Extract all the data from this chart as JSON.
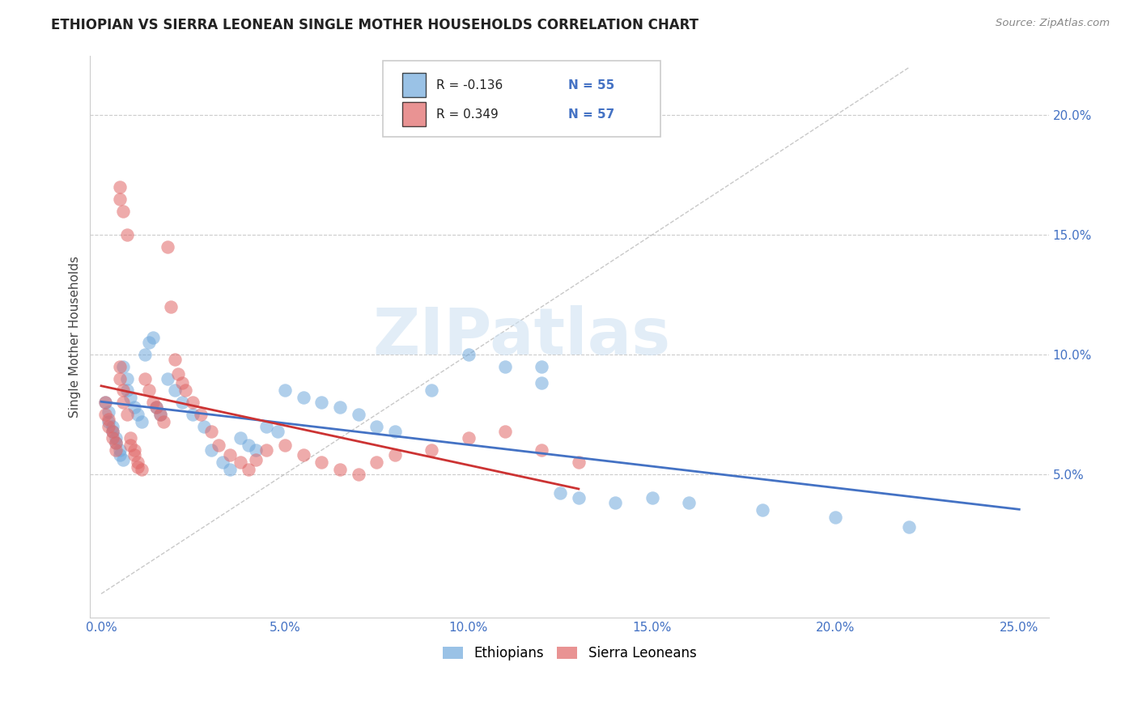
{
  "title": "ETHIOPIAN VS SIERRA LEONEAN SINGLE MOTHER HOUSEHOLDS CORRELATION CHART",
  "source": "Source: ZipAtlas.com",
  "ylabel": "Single Mother Households",
  "xlim_min": -0.003,
  "xlim_max": 0.258,
  "ylim_min": -0.01,
  "ylim_max": 0.225,
  "x_ticks": [
    0.0,
    0.05,
    0.1,
    0.15,
    0.2,
    0.25
  ],
  "x_tick_labels": [
    "0.0%",
    "5.0%",
    "10.0%",
    "15.0%",
    "20.0%",
    "25.0%"
  ],
  "y_ticks_right": [
    0.05,
    0.1,
    0.15,
    0.2
  ],
  "y_tick_labels_right": [
    "5.0%",
    "10.0%",
    "15.0%",
    "20.0%"
  ],
  "ethiopian_color": "#6fa8dc",
  "sierra_leonean_color": "#e06666",
  "ethiopian_line_color": "#4472c4",
  "sierra_leonean_line_color": "#cc3333",
  "diagonal_color": "#bbbbbb",
  "legend_R_ethiopian": "R = -0.136",
  "legend_N_ethiopian": "N = 55",
  "legend_R_sierra": "R = 0.349",
  "legend_N_sierra": "N = 57",
  "watermark_text": "ZIPatlas",
  "ethiopians_label": "Ethiopians",
  "sierra_leoneans_label": "Sierra Leoneans",
  "eth_x": [
    0.001,
    0.002,
    0.002,
    0.003,
    0.003,
    0.004,
    0.004,
    0.005,
    0.005,
    0.006,
    0.006,
    0.007,
    0.007,
    0.008,
    0.009,
    0.01,
    0.011,
    0.012,
    0.013,
    0.014,
    0.015,
    0.016,
    0.018,
    0.02,
    0.022,
    0.025,
    0.028,
    0.03,
    0.033,
    0.035,
    0.038,
    0.04,
    0.042,
    0.045,
    0.048,
    0.05,
    0.055,
    0.06,
    0.065,
    0.07,
    0.075,
    0.08,
    0.09,
    0.1,
    0.11,
    0.12,
    0.13,
    0.14,
    0.15,
    0.16,
    0.18,
    0.2,
    0.12,
    0.125,
    0.22
  ],
  "eth_y": [
    0.08,
    0.076,
    0.072,
    0.07,
    0.068,
    0.065,
    0.063,
    0.06,
    0.058,
    0.056,
    0.095,
    0.09,
    0.085,
    0.082,
    0.078,
    0.075,
    0.072,
    0.1,
    0.105,
    0.107,
    0.078,
    0.075,
    0.09,
    0.085,
    0.08,
    0.075,
    0.07,
    0.06,
    0.055,
    0.052,
    0.065,
    0.062,
    0.06,
    0.07,
    0.068,
    0.085,
    0.082,
    0.08,
    0.078,
    0.075,
    0.07,
    0.068,
    0.085,
    0.1,
    0.095,
    0.088,
    0.04,
    0.038,
    0.04,
    0.038,
    0.035,
    0.032,
    0.095,
    0.042,
    0.028
  ],
  "sl_x": [
    0.001,
    0.001,
    0.002,
    0.002,
    0.003,
    0.003,
    0.004,
    0.004,
    0.005,
    0.005,
    0.005,
    0.006,
    0.006,
    0.007,
    0.007,
    0.008,
    0.008,
    0.009,
    0.009,
    0.01,
    0.01,
    0.011,
    0.012,
    0.013,
    0.014,
    0.015,
    0.016,
    0.017,
    0.018,
    0.019,
    0.02,
    0.021,
    0.022,
    0.023,
    0.025,
    0.027,
    0.03,
    0.032,
    0.035,
    0.038,
    0.04,
    0.042,
    0.045,
    0.05,
    0.055,
    0.06,
    0.065,
    0.07,
    0.075,
    0.08,
    0.09,
    0.1,
    0.11,
    0.12,
    0.13,
    0.005,
    0.006
  ],
  "sl_y": [
    0.08,
    0.075,
    0.073,
    0.07,
    0.068,
    0.065,
    0.063,
    0.06,
    0.095,
    0.09,
    0.165,
    0.085,
    0.08,
    0.075,
    0.15,
    0.065,
    0.062,
    0.06,
    0.058,
    0.055,
    0.053,
    0.052,
    0.09,
    0.085,
    0.08,
    0.078,
    0.075,
    0.072,
    0.145,
    0.12,
    0.098,
    0.092,
    0.088,
    0.085,
    0.08,
    0.075,
    0.068,
    0.062,
    0.058,
    0.055,
    0.052,
    0.056,
    0.06,
    0.062,
    0.058,
    0.055,
    0.052,
    0.05,
    0.055,
    0.058,
    0.06,
    0.065,
    0.068,
    0.06,
    0.055,
    0.17,
    0.16
  ]
}
